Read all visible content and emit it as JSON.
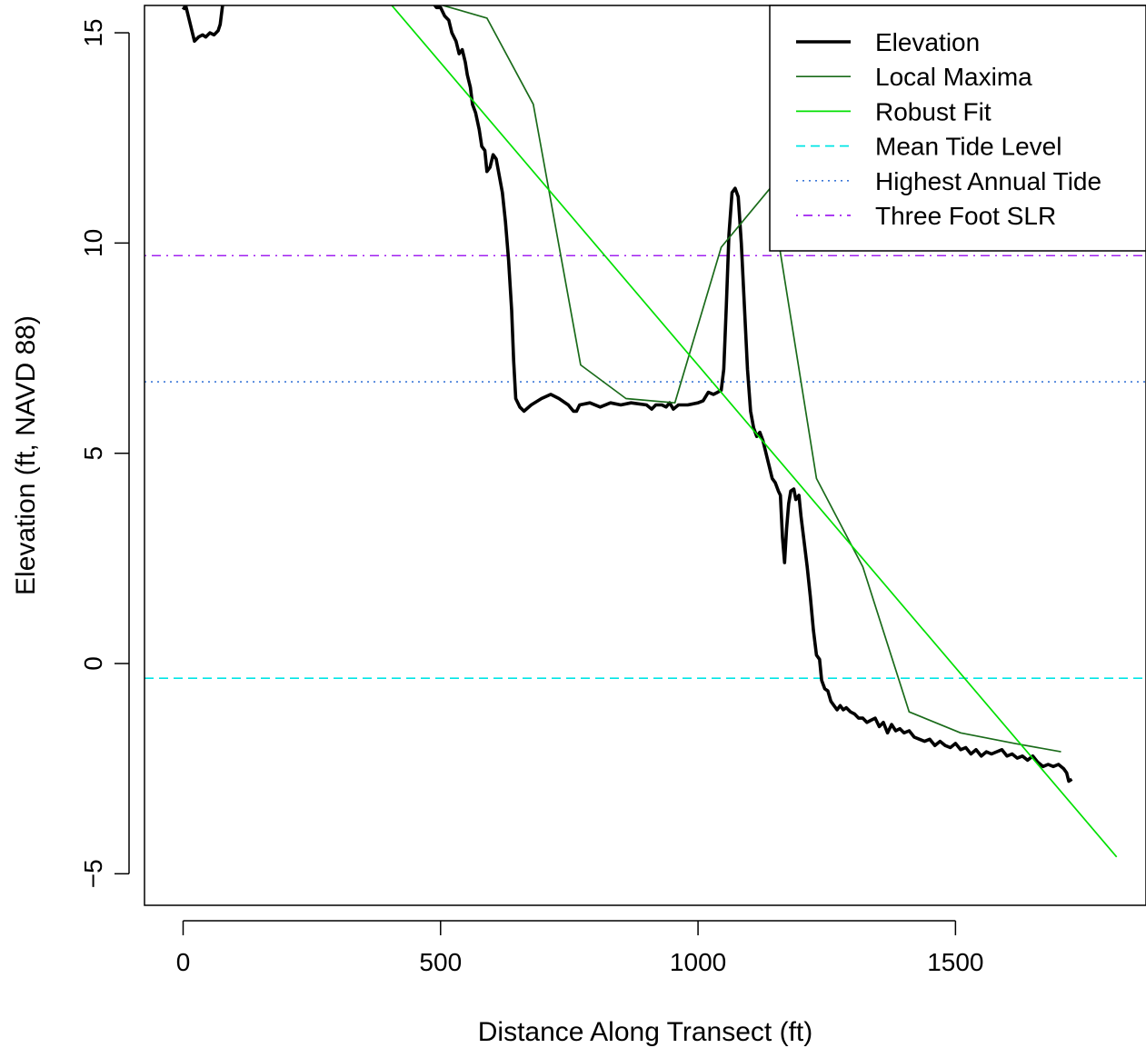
{
  "chart_data": {
    "type": "line",
    "title": "",
    "xlabel": "Distance Along Transect (ft)",
    "ylabel": "Elevation (ft, NAVD 88)",
    "xlim": [
      -75,
      1870
    ],
    "ylim": [
      -5.75,
      15.65
    ],
    "x_ticks": [
      0,
      500,
      1000,
      1500
    ],
    "y_ticks": [
      -5,
      0,
      5,
      10,
      15
    ],
    "x_tick_labels": [
      "0",
      "500",
      "1000",
      "1500"
    ],
    "y_tick_labels": [
      "−5",
      "0",
      "5",
      "10",
      "15"
    ],
    "grid": false,
    "legend_position": "top-right",
    "series": [
      {
        "name": "Elevation",
        "color": "#000000",
        "style": "solid",
        "width": "thick",
        "points": [
          [
            0,
            15.55
          ],
          [
            5,
            15.65
          ],
          [
            12,
            15.3
          ],
          [
            18,
            15.0
          ],
          [
            22,
            14.8
          ],
          [
            30,
            14.9
          ],
          [
            38,
            14.95
          ],
          [
            44,
            14.9
          ],
          [
            52,
            15.0
          ],
          [
            60,
            14.95
          ],
          [
            68,
            15.05
          ],
          [
            72,
            15.2
          ],
          [
            76,
            15.6
          ],
          [
            78,
            15.8
          ],
          [
            480,
            15.8
          ],
          [
            492,
            15.6
          ],
          [
            500,
            15.6
          ],
          [
            508,
            15.4
          ],
          [
            516,
            15.3
          ],
          [
            522,
            15.0
          ],
          [
            530,
            14.8
          ],
          [
            536,
            14.5
          ],
          [
            542,
            14.6
          ],
          [
            548,
            14.3
          ],
          [
            552,
            14.0
          ],
          [
            558,
            13.7
          ],
          [
            562,
            13.3
          ],
          [
            568,
            13.1
          ],
          [
            575,
            12.7
          ],
          [
            580,
            12.3
          ],
          [
            586,
            12.2
          ],
          [
            590,
            11.7
          ],
          [
            596,
            11.8
          ],
          [
            602,
            12.1
          ],
          [
            608,
            12.0
          ],
          [
            614,
            11.6
          ],
          [
            620,
            11.2
          ],
          [
            626,
            10.5
          ],
          [
            632,
            9.6
          ],
          [
            638,
            8.4
          ],
          [
            642,
            7.2
          ],
          [
            646,
            6.3
          ],
          [
            654,
            6.1
          ],
          [
            662,
            6.0
          ],
          [
            676,
            6.15
          ],
          [
            696,
            6.3
          ],
          [
            714,
            6.4
          ],
          [
            730,
            6.3
          ],
          [
            748,
            6.15
          ],
          [
            758,
            6.0
          ],
          [
            764,
            6.0
          ],
          [
            770,
            6.15
          ],
          [
            790,
            6.2
          ],
          [
            810,
            6.1
          ],
          [
            830,
            6.2
          ],
          [
            850,
            6.15
          ],
          [
            870,
            6.2
          ],
          [
            900,
            6.15
          ],
          [
            910,
            6.05
          ],
          [
            918,
            6.15
          ],
          [
            930,
            6.15
          ],
          [
            938,
            6.1
          ],
          [
            945,
            6.2
          ],
          [
            952,
            6.05
          ],
          [
            962,
            6.15
          ],
          [
            980,
            6.15
          ],
          [
            1000,
            6.2
          ],
          [
            1010,
            6.25
          ],
          [
            1020,
            6.45
          ],
          [
            1030,
            6.4
          ],
          [
            1038,
            6.45
          ],
          [
            1045,
            6.5
          ],
          [
            1050,
            7.0
          ],
          [
            1055,
            8.5
          ],
          [
            1060,
            10.2
          ],
          [
            1066,
            11.2
          ],
          [
            1072,
            11.3
          ],
          [
            1078,
            11.1
          ],
          [
            1084,
            10.0
          ],
          [
            1090,
            8.5
          ],
          [
            1096,
            7.0
          ],
          [
            1102,
            6.0
          ],
          [
            1108,
            5.6
          ],
          [
            1114,
            5.4
          ],
          [
            1120,
            5.5
          ],
          [
            1126,
            5.3
          ],
          [
            1132,
            5.0
          ],
          [
            1138,
            4.7
          ],
          [
            1144,
            4.4
          ],
          [
            1150,
            4.3
          ],
          [
            1156,
            4.1
          ],
          [
            1160,
            4.0
          ],
          [
            1164,
            3.0
          ],
          [
            1168,
            2.4
          ],
          [
            1172,
            3.2
          ],
          [
            1176,
            3.8
          ],
          [
            1180,
            4.1
          ],
          [
            1186,
            4.15
          ],
          [
            1190,
            3.9
          ],
          [
            1196,
            4.0
          ],
          [
            1200,
            3.5
          ],
          [
            1206,
            2.9
          ],
          [
            1212,
            2.3
          ],
          [
            1218,
            1.6
          ],
          [
            1224,
            0.8
          ],
          [
            1230,
            0.2
          ],
          [
            1236,
            0.1
          ],
          [
            1240,
            -0.4
          ],
          [
            1246,
            -0.6
          ],
          [
            1252,
            -0.65
          ],
          [
            1258,
            -0.9
          ],
          [
            1264,
            -1.0
          ],
          [
            1270,
            -1.1
          ],
          [
            1276,
            -1.0
          ],
          [
            1282,
            -1.1
          ],
          [
            1288,
            -1.05
          ],
          [
            1296,
            -1.15
          ],
          [
            1304,
            -1.2
          ],
          [
            1312,
            -1.3
          ],
          [
            1320,
            -1.3
          ],
          [
            1328,
            -1.4
          ],
          [
            1336,
            -1.35
          ],
          [
            1344,
            -1.3
          ],
          [
            1352,
            -1.5
          ],
          [
            1360,
            -1.4
          ],
          [
            1368,
            -1.65
          ],
          [
            1376,
            -1.45
          ],
          [
            1384,
            -1.6
          ],
          [
            1392,
            -1.55
          ],
          [
            1400,
            -1.65
          ],
          [
            1410,
            -1.6
          ],
          [
            1420,
            -1.75
          ],
          [
            1430,
            -1.8
          ],
          [
            1440,
            -1.85
          ],
          [
            1450,
            -1.8
          ],
          [
            1460,
            -1.95
          ],
          [
            1470,
            -1.85
          ],
          [
            1480,
            -1.95
          ],
          [
            1490,
            -2.0
          ],
          [
            1500,
            -1.9
          ],
          [
            1510,
            -2.05
          ],
          [
            1520,
            -2.0
          ],
          [
            1530,
            -2.15
          ],
          [
            1540,
            -2.05
          ],
          [
            1550,
            -2.2
          ],
          [
            1560,
            -2.1
          ],
          [
            1570,
            -2.15
          ],
          [
            1580,
            -2.1
          ],
          [
            1590,
            -2.05
          ],
          [
            1600,
            -2.2
          ],
          [
            1610,
            -2.15
          ],
          [
            1620,
            -2.25
          ],
          [
            1630,
            -2.2
          ],
          [
            1640,
            -2.3
          ],
          [
            1650,
            -2.2
          ],
          [
            1660,
            -2.35
          ],
          [
            1670,
            -2.45
          ],
          [
            1680,
            -2.4
          ],
          [
            1690,
            -2.45
          ],
          [
            1700,
            -2.4
          ],
          [
            1710,
            -2.5
          ],
          [
            1716,
            -2.6
          ],
          [
            1720,
            -2.8
          ],
          [
            1726,
            -2.75
          ]
        ]
      },
      {
        "name": "Local Maxima",
        "color": "#1a6b1a",
        "style": "solid",
        "width": "thin",
        "points": [
          [
            495,
            15.8
          ],
          [
            505,
            15.65
          ],
          [
            590,
            15.35
          ],
          [
            680,
            13.3
          ],
          [
            772,
            7.1
          ],
          [
            860,
            6.3
          ],
          [
            955,
            6.2
          ],
          [
            1045,
            9.9
          ],
          [
            1140,
            11.3
          ],
          [
            1230,
            4.4
          ],
          [
            1320,
            2.3
          ],
          [
            1410,
            -1.15
          ],
          [
            1510,
            -1.65
          ],
          [
            1615,
            -1.9
          ],
          [
            1705,
            -2.1
          ]
        ]
      },
      {
        "name": "Robust Fit",
        "color": "#00e000",
        "style": "solid",
        "width": "thin",
        "points": [
          [
            395,
            15.8
          ],
          [
            1813,
            -4.6
          ]
        ]
      }
    ],
    "reference_lines": [
      {
        "name": "Mean Tide Level",
        "y": -0.35,
        "color": "#00e5e5",
        "style": "dashed"
      },
      {
        "name": "Highest Annual Tide",
        "y": 6.7,
        "color": "#3c78d8",
        "style": "dotted"
      },
      {
        "name": "Three Foot SLR",
        "y": 9.7,
        "color": "#a020f0",
        "style": "dashdot"
      }
    ],
    "legend": [
      {
        "label": "Elevation",
        "color": "#000000",
        "style": "solid",
        "thick": true
      },
      {
        "label": "Local Maxima",
        "color": "#1a6b1a",
        "style": "solid",
        "thick": false
      },
      {
        "label": "Robust Fit",
        "color": "#00e000",
        "style": "solid",
        "thick": false
      },
      {
        "label": "Mean Tide Level",
        "color": "#00e5e5",
        "style": "dashed",
        "thick": false
      },
      {
        "label": "Highest Annual Tide",
        "color": "#3c78d8",
        "style": "dotted",
        "thick": false
      },
      {
        "label": "Three Foot SLR",
        "color": "#a020f0",
        "style": "dashdot",
        "thick": false
      }
    ]
  }
}
